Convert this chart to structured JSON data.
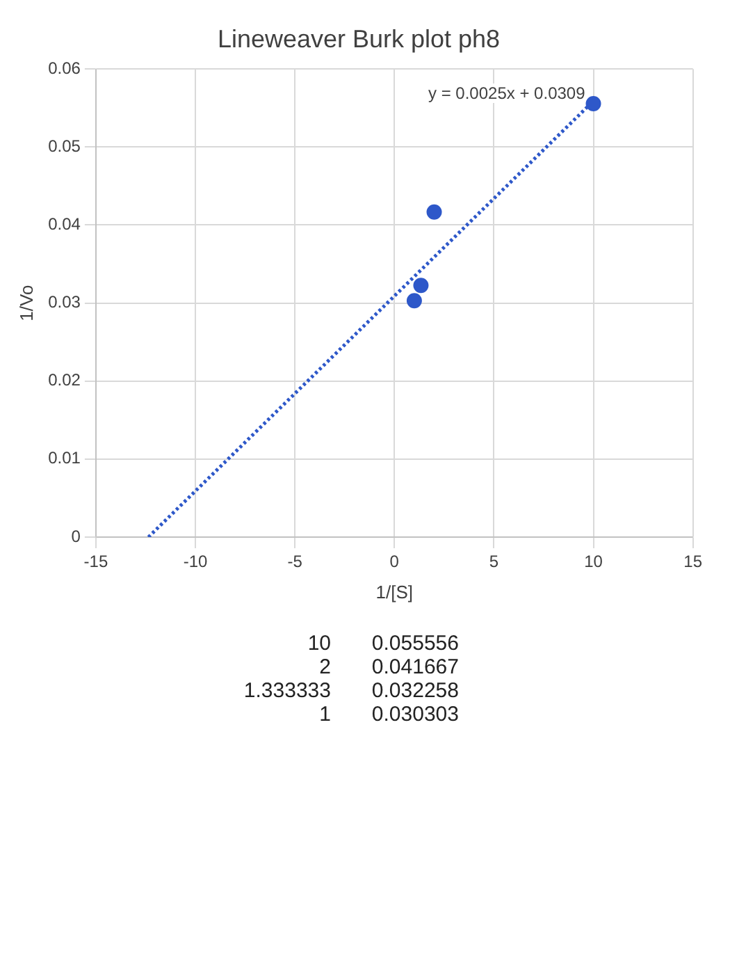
{
  "chart_data": {
    "type": "scatter",
    "title": "Lineweaver Burk plot ph8",
    "xlabel": "1/[S]",
    "ylabel": "1/Vo",
    "x": [
      10,
      2,
      1.333333,
      1
    ],
    "series": [
      {
        "type": "scatter",
        "color": "#2e58c9",
        "values": [
          0.055556,
          0.041667,
          0.032258,
          0.030303
        ],
        "marker": "circle"
      },
      {
        "type": "line",
        "color": "#2e58c9",
        "x": [
          -12.36,
          10
        ],
        "values": [
          0,
          0.0559
        ],
        "marker": "none",
        "line_style": "dotted"
      }
    ],
    "xlim": [
      -15,
      15
    ],
    "xticks": [
      -15,
      -10,
      -5,
      0,
      5,
      10,
      15
    ],
    "ylim": [
      0,
      0.06
    ],
    "yticks": [
      0,
      0.01,
      0.02,
      0.03,
      0.04,
      0.05,
      0.06
    ],
    "grid": true,
    "legend": false,
    "annotations": [
      "y = 0.0025x + 0.0309",
      "10",
      "0.055556",
      "2",
      "0.041667",
      "1.333333",
      "0.032258",
      "1",
      "0.030303"
    ]
  }
}
